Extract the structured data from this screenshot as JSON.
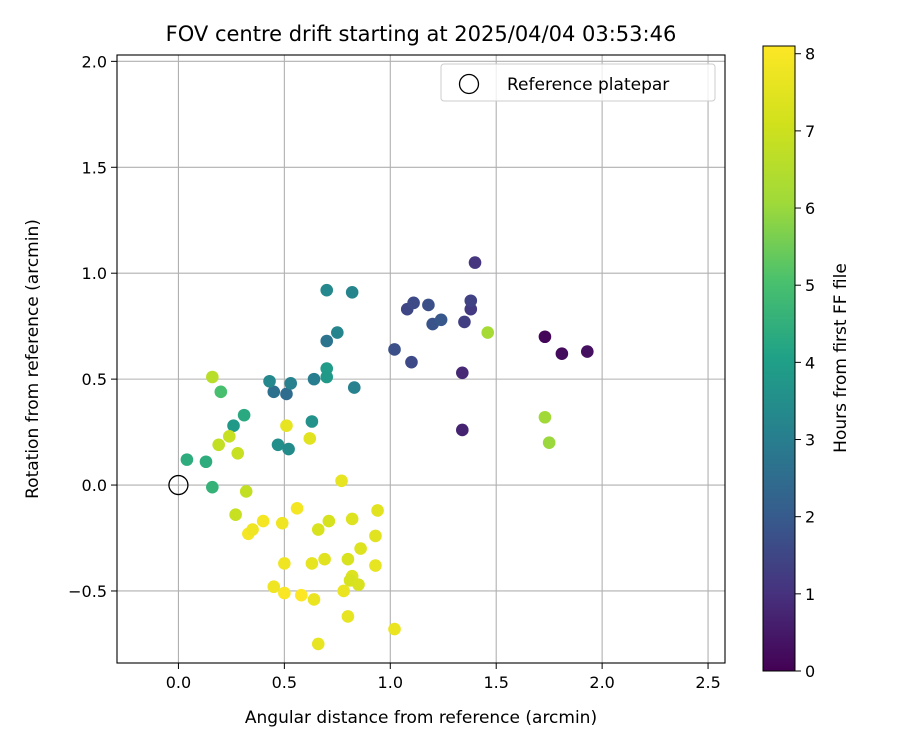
{
  "chart_data": {
    "type": "scatter",
    "title": "FOV centre drift starting at 2025/04/04 03:53:46",
    "xlabel": "Angular distance from reference (arcmin)",
    "ylabel": "Rotation from reference (arcmin)",
    "xlim": [
      -0.29,
      2.58
    ],
    "ylim": [
      -0.84,
      2.03
    ],
    "xticks": [
      0.0,
      0.5,
      1.0,
      1.5,
      2.0,
      2.5
    ],
    "xtick_labels": [
      "0.0",
      "0.5",
      "1.0",
      "1.5",
      "2.0",
      "2.5"
    ],
    "yticks": [
      -0.5,
      0.0,
      0.5,
      1.0,
      1.5,
      2.0
    ],
    "ytick_labels": [
      "−0.5",
      "0.0",
      "0.5",
      "1.0",
      "1.5",
      "2.0"
    ],
    "grid": true,
    "legend": {
      "placement": "top-right",
      "entries": [
        "Reference platepar"
      ]
    },
    "colorbar": {
      "label": "Hours from first FF file",
      "colormap": "viridis",
      "range": [
        0,
        8.1
      ],
      "ticks": [
        0,
        1,
        2,
        3,
        4,
        5,
        6,
        7,
        8
      ],
      "tick_labels": [
        "0",
        "1",
        "2",
        "3",
        "4",
        "5",
        "6",
        "7",
        "8"
      ]
    },
    "reference_point": {
      "x": 0.0,
      "y": 0.0
    },
    "points": [
      {
        "x": 1.73,
        "y": 0.7,
        "c": 0.1
      },
      {
        "x": 1.81,
        "y": 0.62,
        "c": 0.2
      },
      {
        "x": 1.93,
        "y": 0.63,
        "c": 0.3
      },
      {
        "x": 1.34,
        "y": 0.26,
        "c": 0.7
      },
      {
        "x": 1.34,
        "y": 0.53,
        "c": 0.8
      },
      {
        "x": 1.4,
        "y": 1.05,
        "c": 1.1
      },
      {
        "x": 1.38,
        "y": 0.83,
        "c": 1.2
      },
      {
        "x": 1.35,
        "y": 0.77,
        "c": 1.3
      },
      {
        "x": 1.38,
        "y": 0.87,
        "c": 1.4
      },
      {
        "x": 1.08,
        "y": 0.83,
        "c": 1.5
      },
      {
        "x": 1.11,
        "y": 0.86,
        "c": 1.6
      },
      {
        "x": 1.18,
        "y": 0.85,
        "c": 1.7
      },
      {
        "x": 1.2,
        "y": 0.76,
        "c": 1.8
      },
      {
        "x": 1.24,
        "y": 0.78,
        "c": 1.9
      },
      {
        "x": 1.1,
        "y": 0.58,
        "c": 1.6
      },
      {
        "x": 1.02,
        "y": 0.64,
        "c": 1.7
      },
      {
        "x": 0.51,
        "y": 0.43,
        "c": 2.5
      },
      {
        "x": 0.45,
        "y": 0.44,
        "c": 2.6
      },
      {
        "x": 0.7,
        "y": 0.68,
        "c": 2.7
      },
      {
        "x": 0.53,
        "y": 0.48,
        "c": 3.1
      },
      {
        "x": 0.43,
        "y": 0.49,
        "c": 3.3
      },
      {
        "x": 0.64,
        "y": 0.5,
        "c": 3.0
      },
      {
        "x": 0.75,
        "y": 0.72,
        "c": 3.2
      },
      {
        "x": 0.7,
        "y": 0.92,
        "c": 3.3
      },
      {
        "x": 0.82,
        "y": 0.91,
        "c": 3.2
      },
      {
        "x": 0.83,
        "y": 0.46,
        "c": 3.1
      },
      {
        "x": 0.7,
        "y": 0.55,
        "c": 3.9
      },
      {
        "x": 0.7,
        "y": 0.51,
        "c": 3.8
      },
      {
        "x": 0.47,
        "y": 0.19,
        "c": 3.5
      },
      {
        "x": 0.52,
        "y": 0.17,
        "c": 3.4
      },
      {
        "x": 0.63,
        "y": 0.3,
        "c": 3.6
      },
      {
        "x": 0.26,
        "y": 0.28,
        "c": 3.8
      },
      {
        "x": 0.31,
        "y": 0.33,
        "c": 4.3
      },
      {
        "x": 0.04,
        "y": 0.12,
        "c": 4.4
      },
      {
        "x": 0.13,
        "y": 0.11,
        "c": 4.4
      },
      {
        "x": 0.16,
        "y": -0.01,
        "c": 4.6
      },
      {
        "x": 0.2,
        "y": 0.44,
        "c": 5.0
      },
      {
        "x": 1.46,
        "y": 0.72,
        "c": 6.2
      },
      {
        "x": 1.73,
        "y": 0.32,
        "c": 6.1
      },
      {
        "x": 1.75,
        "y": 0.2,
        "c": 6.0
      },
      {
        "x": 0.16,
        "y": 0.51,
        "c": 6.6
      },
      {
        "x": 0.19,
        "y": 0.19,
        "c": 6.8
      },
      {
        "x": 0.24,
        "y": 0.23,
        "c": 6.9
      },
      {
        "x": 0.28,
        "y": 0.15,
        "c": 6.9
      },
      {
        "x": 0.32,
        "y": -0.03,
        "c": 6.8
      },
      {
        "x": 0.27,
        "y": -0.14,
        "c": 6.9
      },
      {
        "x": 0.51,
        "y": 0.28,
        "c": 7.6
      },
      {
        "x": 0.62,
        "y": 0.22,
        "c": 7.5
      },
      {
        "x": 0.77,
        "y": 0.02,
        "c": 7.6
      },
      {
        "x": 0.33,
        "y": -0.23,
        "c": 7.9
      },
      {
        "x": 0.35,
        "y": -0.21,
        "c": 7.8
      },
      {
        "x": 0.4,
        "y": -0.17,
        "c": 7.9
      },
      {
        "x": 0.49,
        "y": -0.18,
        "c": 7.8
      },
      {
        "x": 0.56,
        "y": -0.11,
        "c": 7.9
      },
      {
        "x": 0.66,
        "y": -0.21,
        "c": 7.3
      },
      {
        "x": 0.71,
        "y": -0.17,
        "c": 7.2
      },
      {
        "x": 0.82,
        "y": -0.16,
        "c": 7.4
      },
      {
        "x": 0.94,
        "y": -0.12,
        "c": 7.5
      },
      {
        "x": 0.93,
        "y": -0.24,
        "c": 7.5
      },
      {
        "x": 0.86,
        "y": -0.3,
        "c": 7.4
      },
      {
        "x": 0.8,
        "y": -0.35,
        "c": 7.3
      },
      {
        "x": 0.69,
        "y": -0.35,
        "c": 7.5
      },
      {
        "x": 0.63,
        "y": -0.37,
        "c": 7.6
      },
      {
        "x": 0.5,
        "y": -0.37,
        "c": 7.8
      },
      {
        "x": 0.93,
        "y": -0.38,
        "c": 7.6
      },
      {
        "x": 0.82,
        "y": -0.43,
        "c": 7.4
      },
      {
        "x": 0.81,
        "y": -0.45,
        "c": 7.2
      },
      {
        "x": 0.85,
        "y": -0.47,
        "c": 7.3
      },
      {
        "x": 0.45,
        "y": -0.48,
        "c": 7.8
      },
      {
        "x": 0.5,
        "y": -0.51,
        "c": 8.0
      },
      {
        "x": 0.58,
        "y": -0.52,
        "c": 8.1
      },
      {
        "x": 0.64,
        "y": -0.54,
        "c": 7.7
      },
      {
        "x": 0.78,
        "y": -0.5,
        "c": 7.7
      },
      {
        "x": 0.8,
        "y": -0.62,
        "c": 7.6
      },
      {
        "x": 1.02,
        "y": -0.68,
        "c": 7.7
      },
      {
        "x": 0.66,
        "y": -0.75,
        "c": 7.6
      }
    ]
  }
}
